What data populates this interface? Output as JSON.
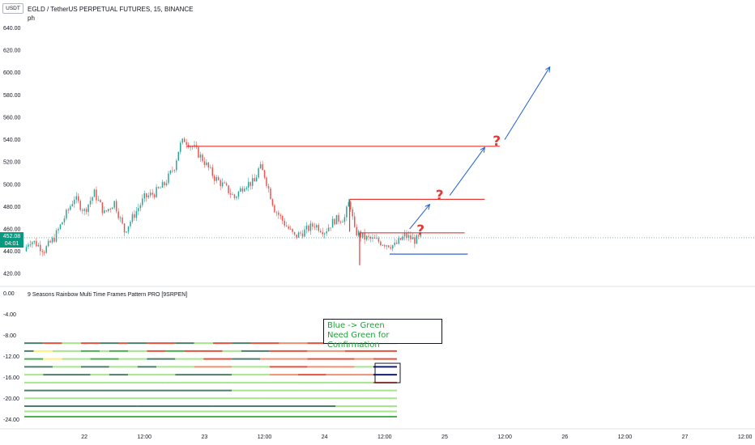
{
  "header": {
    "title": "EGLD / TetherUS PERPETUAL FUTURES, 15, BINANCE",
    "subtitle": "ph",
    "currency": "USDT"
  },
  "price_tag": {
    "price": "452.08",
    "countdown": "04:01"
  },
  "indicator": {
    "title": "9 Seasons Rainbow Multi Time Frames Pattern PRO [9SRPEN]"
  },
  "annotation": {
    "line1": "Blue -> Green",
    "line2": "Need Green for Confirmation"
  },
  "question_mark": "?",
  "colors": {
    "up": "#26a69a",
    "down": "#ef5350",
    "level_red": "#e53935",
    "level_blue": "#1e4fd8",
    "projection": "#1e5fd8",
    "rainbow_light_green": "#a5e68c",
    "rainbow_green": "#4caf50",
    "rainbow_dark_green": "#4e7d6b",
    "rainbow_red": "#e5533c",
    "rainbow_orange": "#f09070",
    "rainbow_yellow": "#fff176",
    "rainbow_navy": "#0d1f7a"
  },
  "chart_data": [
    {
      "type": "candlestick",
      "title": "EGLD / TetherUS PERPETUAL FUTURES, 15, BINANCE",
      "ylim": [
        410,
        665
      ],
      "y_ticks": [
        "660.00",
        "640.00",
        "620.00",
        "600.00",
        "580.00",
        "560.00",
        "540.00",
        "520.00",
        "500.00",
        "480.00",
        "460.00",
        "440.00",
        "420.00"
      ],
      "x_ticks": [
        "22",
        "12:00",
        "23",
        "12:00",
        "24",
        "12:00",
        "25",
        "12:00",
        "26",
        "12:00",
        "27",
        "12:00"
      ],
      "last_price": 452.08,
      "price_path": [
        [
          0,
          440
        ],
        [
          0.5,
          450
        ],
        [
          1,
          448
        ],
        [
          2,
          441
        ],
        [
          3,
          452
        ],
        [
          4,
          470
        ],
        [
          5,
          488
        ],
        [
          6,
          476
        ],
        [
          7,
          492
        ],
        [
          8,
          474
        ],
        [
          9,
          484
        ],
        [
          10,
          458
        ],
        [
          11,
          473
        ],
        [
          12,
          488
        ],
        [
          13,
          492
        ],
        [
          14,
          500
        ],
        [
          15,
          516
        ],
        [
          15.5,
          534
        ],
        [
          16,
          540
        ],
        [
          17,
          532
        ],
        [
          18,
          520
        ],
        [
          19,
          506
        ],
        [
          20,
          498
        ],
        [
          21,
          488
        ],
        [
          22,
          500
        ],
        [
          23,
          502
        ],
        [
          23.5,
          516
        ],
        [
          24,
          508
        ],
        [
          25,
          478
        ],
        [
          26,
          465
        ],
        [
          27,
          453
        ],
        [
          28,
          458
        ],
        [
          29,
          464
        ],
        [
          30,
          458
        ],
        [
          31,
          468
        ],
        [
          32,
          470
        ],
        [
          32.5,
          486
        ],
        [
          33,
          458
        ],
        [
          34,
          452
        ],
        [
          35,
          450
        ],
        [
          36,
          447
        ],
        [
          37,
          445
        ],
        [
          38,
          454
        ],
        [
          39,
          450
        ],
        [
          39.8,
          452
        ]
      ],
      "levels": [
        {
          "price": 534,
          "from": 16.2,
          "to": 47.5,
          "color": "red"
        },
        {
          "price": 486.5,
          "from": 32.5,
          "to": 46,
          "color": "red"
        },
        {
          "price": 456.5,
          "from": 33.5,
          "to": 44,
          "color": "red"
        },
        {
          "price": 437.5,
          "from": 36.5,
          "to": 44.3,
          "color": "blue"
        }
      ],
      "projections": [
        {
          "from": [
            38.5,
            460
          ],
          "to": [
            40.5,
            482
          ]
        },
        {
          "from": [
            42.5,
            490
          ],
          "to": [
            46,
            533
          ]
        },
        {
          "from": [
            48,
            540
          ],
          "to": [
            52.5,
            605
          ]
        }
      ],
      "question_marks": [
        {
          "x": 39.6,
          "price": 456
        },
        {
          "x": 41.5,
          "price": 487
        },
        {
          "x": 47.2,
          "price": 535
        }
      ],
      "x_tick_positions": [
        6,
        12,
        18,
        24,
        30,
        36,
        42,
        48,
        54,
        60,
        66,
        72
      ],
      "x_range": [
        0,
        73
      ]
    },
    {
      "type": "rainbow_lines",
      "title": "9 Seasons Rainbow Multi Time Frames Pattern PRO [9SRPEN]",
      "ylim": [
        -25.5,
        1
      ],
      "y_ticks": [
        "0.00",
        "-4.00",
        "-8.00",
        "-12.00",
        "-16.00",
        "-20.00",
        "-24.00"
      ],
      "rows": [
        {
          "y": -9.5,
          "segments": [
            [
              0,
              2,
              "dark"
            ],
            [
              2,
              4,
              "red"
            ],
            [
              4,
              6,
              "light"
            ],
            [
              6,
              8,
              "red"
            ],
            [
              8,
              10,
              "dark"
            ],
            [
              10,
              11,
              "red"
            ],
            [
              11,
              13,
              "dark"
            ],
            [
              13,
              16,
              "red"
            ],
            [
              16,
              18,
              "dark"
            ],
            [
              18,
              20,
              "light"
            ],
            [
              20,
              22,
              "red"
            ],
            [
              22,
              24,
              "dark"
            ],
            [
              24,
              27,
              "red"
            ],
            [
              27,
              30,
              "orange"
            ],
            [
              30,
              34,
              "red"
            ],
            [
              34,
              37,
              "orange"
            ],
            [
              37,
              39.5,
              "red"
            ]
          ]
        },
        {
          "y": -11.0,
          "segments": [
            [
              0,
              1,
              "dark"
            ],
            [
              1,
              3,
              "yellow"
            ],
            [
              3,
              6,
              "light"
            ],
            [
              6,
              8,
              "green"
            ],
            [
              8,
              9,
              "light"
            ],
            [
              9,
              11,
              "green"
            ],
            [
              11,
              13,
              "light"
            ],
            [
              13,
              15,
              "red"
            ],
            [
              15,
              17,
              "green"
            ],
            [
              17,
              21,
              "red"
            ],
            [
              21,
              23,
              "light"
            ],
            [
              23,
              26,
              "dark"
            ],
            [
              26,
              30,
              "red"
            ],
            [
              30,
              34,
              "orange"
            ],
            [
              34,
              39.5,
              "red"
            ]
          ]
        },
        {
          "y": -12.5,
          "segments": [
            [
              0,
              2,
              "green"
            ],
            [
              2,
              4,
              "yellow"
            ],
            [
              4,
              7,
              "light"
            ],
            [
              7,
              10,
              "green"
            ],
            [
              10,
              13,
              "light"
            ],
            [
              13,
              16,
              "dark"
            ],
            [
              16,
              19,
              "light"
            ],
            [
              19,
              22,
              "red"
            ],
            [
              22,
              25,
              "dark"
            ],
            [
              25,
              30,
              "orange"
            ],
            [
              30,
              35,
              "red"
            ],
            [
              35,
              37,
              "orange"
            ],
            [
              37,
              39.5,
              "red"
            ]
          ]
        },
        {
          "y": -14.0,
          "segments": [
            [
              0,
              3,
              "dark"
            ],
            [
              3,
              6,
              "light"
            ],
            [
              6,
              9,
              "dark"
            ],
            [
              9,
              12,
              "light"
            ],
            [
              12,
              14,
              "dark"
            ],
            [
              14,
              18,
              "light"
            ],
            [
              18,
              22,
              "orange"
            ],
            [
              22,
              26,
              "light"
            ],
            [
              26,
              30,
              "red"
            ],
            [
              30,
              35,
              "orange"
            ],
            [
              35,
              37,
              "light"
            ],
            [
              37,
              39.5,
              "navy"
            ]
          ]
        },
        {
          "y": -15.5,
          "segments": [
            [
              0,
              2,
              "light"
            ],
            [
              2,
              7,
              "dark"
            ],
            [
              7,
              9,
              "light"
            ],
            [
              9,
              11,
              "dark"
            ],
            [
              11,
              16,
              "light"
            ],
            [
              16,
              22,
              "dark"
            ],
            [
              22,
              26,
              "light"
            ],
            [
              26,
              29,
              "orange"
            ],
            [
              29,
              32,
              "red"
            ],
            [
              32,
              37,
              "orange"
            ],
            [
              37,
              39.5,
              "navy"
            ]
          ]
        },
        {
          "y": -17.0,
          "segments": [
            [
              0,
              10,
              "light"
            ],
            [
              10,
              15,
              "light"
            ],
            [
              15,
              22,
              "light"
            ],
            [
              22,
              30,
              "light"
            ],
            [
              30,
              37,
              "light"
            ],
            [
              37,
              39.5,
              "red"
            ]
          ]
        },
        {
          "y": -18.5,
          "segments": [
            [
              0,
              22,
              "dark"
            ],
            [
              22,
              39.5,
              "light"
            ]
          ]
        },
        {
          "y": -20.0,
          "segments": [
            [
              0,
              25,
              "light"
            ],
            [
              25,
              39.5,
              "light"
            ]
          ]
        },
        {
          "y": -21.5,
          "segments": [
            [
              0,
              12,
              "dark"
            ],
            [
              12,
              20,
              "dark"
            ],
            [
              20,
              33,
              "dark"
            ],
            [
              33,
              39.5,
              "light"
            ]
          ]
        },
        {
          "y": -22.5,
          "segments": [
            [
              0,
              39.5,
              "light"
            ]
          ]
        },
        {
          "y": -23.5,
          "segments": [
            [
              0,
              39.5,
              "green"
            ]
          ]
        }
      ]
    }
  ]
}
